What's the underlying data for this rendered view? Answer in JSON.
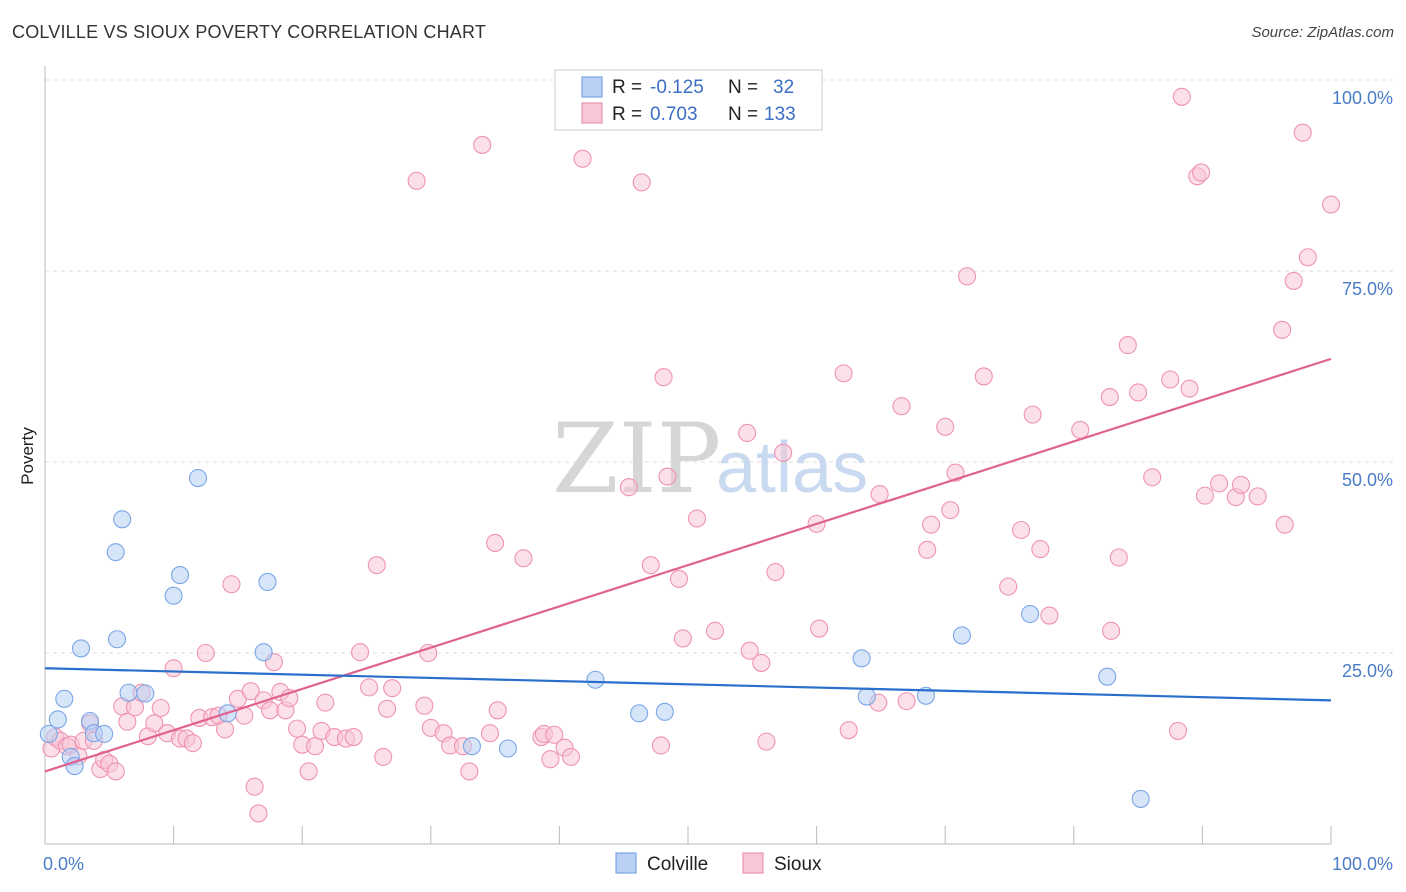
{
  "title": "COLVILLE VS SIOUX POVERTY CORRELATION CHART",
  "source": "Source: ZipAtlas.com",
  "watermark": {
    "part1": "ZIP",
    "part2": "atlas"
  },
  "colors": {
    "colville_fill": "#b7d0f4",
    "colville_stroke": "#7ba6e6",
    "colville_line": "#2a6fcc",
    "sioux_fill": "#f8c6d6",
    "sioux_stroke": "#ef93b3",
    "sioux_line": "#e0628f",
    "axis_label": "#4a7cc7",
    "grid": "#dddddd"
  },
  "legend": {
    "rows": [
      {
        "series": "colville",
        "r_label": "R =",
        "r_value": "-0.125",
        "n_label": "N =",
        "n_value": "32"
      },
      {
        "series": "sioux",
        "r_label": "R =",
        "r_value": "0.703",
        "n_label": "N =",
        "n_value": "133"
      }
    ]
  },
  "chart_data": {
    "type": "scatter",
    "title": "COLVILLE VS SIOUX POVERTY CORRELATION CHART",
    "xlabel": "",
    "ylabel": "Poverty",
    "xlim": [
      0,
      100
    ],
    "ylim": [
      0,
      100
    ],
    "x_tick_labels": [
      {
        "value": 0,
        "label": "0.0%"
      },
      {
        "value": 100,
        "label": "100.0%"
      }
    ],
    "y_tick_labels": [
      {
        "value": 25,
        "label": "25.0%"
      },
      {
        "value": 50,
        "label": "50.0%"
      },
      {
        "value": 75,
        "label": "75.0%"
      },
      {
        "value": 100,
        "label": "100.0%"
      }
    ],
    "grid": true,
    "legend_position": "top-center",
    "series": [
      {
        "name": "Colville",
        "r": -0.125,
        "n": 32,
        "trend": {
          "x": [
            0,
            100
          ],
          "y": [
            23.0,
            18.8
          ]
        },
        "points": [
          [
            1,
            16.3
          ],
          [
            1.5,
            19
          ],
          [
            2,
            11.4
          ],
          [
            2.3,
            10.2
          ],
          [
            2.8,
            25.6
          ],
          [
            3.5,
            16.1
          ],
          [
            3.8,
            14.5
          ],
          [
            4.6,
            14.4
          ],
          [
            5.5,
            38.2
          ],
          [
            5.6,
            26.8
          ],
          [
            6,
            42.5
          ],
          [
            6.5,
            19.8
          ],
          [
            7.8,
            19.7
          ],
          [
            10,
            32.5
          ],
          [
            10.5,
            35.2
          ],
          [
            11.9,
            47.9
          ],
          [
            14.2,
            17.1
          ],
          [
            17,
            25.1
          ],
          [
            17.3,
            34.3
          ],
          [
            33.2,
            12.8
          ],
          [
            36,
            12.5
          ],
          [
            42.8,
            21.5
          ],
          [
            46.2,
            17.1
          ],
          [
            48.2,
            17.3
          ],
          [
            63.5,
            24.3
          ],
          [
            63.9,
            19.3
          ],
          [
            68.5,
            19.4
          ],
          [
            71.3,
            27.3
          ],
          [
            76.6,
            30.1
          ],
          [
            82.6,
            21.9
          ],
          [
            85.2,
            5.9
          ],
          [
            0.3,
            14.4
          ]
        ]
      },
      {
        "name": "Sioux",
        "r": 0.703,
        "n": 133,
        "trend": {
          "x": [
            0,
            100
          ],
          "y": [
            9.5,
            63.5
          ]
        },
        "points": [
          [
            0.5,
            12.5
          ],
          [
            0.8,
            14
          ],
          [
            1.2,
            13.5
          ],
          [
            1.7,
            12.8
          ],
          [
            2,
            13
          ],
          [
            2.6,
            11.5
          ],
          [
            3,
            13.5
          ],
          [
            3.5,
            15.8
          ],
          [
            3.8,
            13.5
          ],
          [
            4.3,
            9.8
          ],
          [
            4.6,
            11
          ],
          [
            5,
            10.5
          ],
          [
            5.5,
            9.5
          ],
          [
            6,
            18
          ],
          [
            6.4,
            16
          ],
          [
            7,
            17.9
          ],
          [
            7.5,
            19.8
          ],
          [
            8,
            14.1
          ],
          [
            8.5,
            15.8
          ],
          [
            9,
            17.8
          ],
          [
            9.5,
            14.5
          ],
          [
            10,
            23
          ],
          [
            10.5,
            13.8
          ],
          [
            11,
            13.8
          ],
          [
            11.5,
            13.2
          ],
          [
            12,
            16.5
          ],
          [
            12.5,
            25
          ],
          [
            13,
            16.6
          ],
          [
            13.5,
            16.8
          ],
          [
            14,
            15
          ],
          [
            14.5,
            34
          ],
          [
            15,
            19
          ],
          [
            15.5,
            16.8
          ],
          [
            16,
            20
          ],
          [
            16.3,
            7.5
          ],
          [
            16.6,
            4
          ],
          [
            17,
            18.8
          ],
          [
            17.5,
            17.5
          ],
          [
            17.8,
            23.8
          ],
          [
            18.3,
            19.9
          ],
          [
            18.7,
            17.5
          ],
          [
            19,
            19.1
          ],
          [
            19.6,
            15.1
          ],
          [
            20,
            13
          ],
          [
            20.5,
            9.5
          ],
          [
            21,
            12.8
          ],
          [
            21.5,
            14.8
          ],
          [
            21.8,
            18.5
          ],
          [
            22.5,
            14
          ],
          [
            23.4,
            13.8
          ],
          [
            24,
            14
          ],
          [
            24.5,
            25.1
          ],
          [
            25.2,
            20.5
          ],
          [
            25.8,
            36.5
          ],
          [
            26.3,
            11.4
          ],
          [
            26.6,
            17.7
          ],
          [
            27,
            20.4
          ],
          [
            28.9,
            86.8
          ],
          [
            29.5,
            18.1
          ],
          [
            29.8,
            25
          ],
          [
            30,
            15.2
          ],
          [
            31,
            14.5
          ],
          [
            31.5,
            12.9
          ],
          [
            32.5,
            12.8
          ],
          [
            33,
            9.5
          ],
          [
            34,
            91.5
          ],
          [
            34.6,
            14.5
          ],
          [
            35,
            39.4
          ],
          [
            35.2,
            17.5
          ],
          [
            37.2,
            37.4
          ],
          [
            38.6,
            14
          ],
          [
            38.8,
            14.4
          ],
          [
            39.3,
            11.1
          ],
          [
            39.6,
            14.3
          ],
          [
            40.4,
            12.6
          ],
          [
            40.9,
            11.4
          ],
          [
            41.8,
            89.7
          ],
          [
            45.4,
            46.7
          ],
          [
            46.4,
            86.6
          ],
          [
            47.1,
            36.5
          ],
          [
            47.9,
            12.9
          ],
          [
            48.1,
            61.1
          ],
          [
            48.4,
            48.1
          ],
          [
            49.3,
            34.7
          ],
          [
            49.6,
            26.9
          ],
          [
            50.7,
            42.6
          ],
          [
            52.1,
            27.9
          ],
          [
            54.6,
            53.8
          ],
          [
            54.8,
            25.3
          ],
          [
            55.7,
            23.7
          ],
          [
            56.1,
            13.4
          ],
          [
            56.8,
            35.6
          ],
          [
            57.4,
            51.2
          ],
          [
            60,
            41.9
          ],
          [
            60.2,
            28.2
          ],
          [
            62.1,
            61.6
          ],
          [
            62.5,
            14.9
          ],
          [
            64.9,
            45.8
          ],
          [
            64.8,
            18.5
          ],
          [
            66.6,
            57.3
          ],
          [
            67,
            18.7
          ],
          [
            68.6,
            38.5
          ],
          [
            68.9,
            41.8
          ],
          [
            70,
            54.6
          ],
          [
            70.4,
            43.7
          ],
          [
            70.8,
            48.6
          ],
          [
            71.7,
            74.3
          ],
          [
            73,
            61.2
          ],
          [
            74.9,
            33.7
          ],
          [
            75.9,
            41.1
          ],
          [
            76.8,
            56.2
          ],
          [
            77.4,
            38.6
          ],
          [
            78.1,
            29.9
          ],
          [
            80.5,
            54.2
          ],
          [
            82.8,
            58.5
          ],
          [
            82.9,
            27.9
          ],
          [
            83.5,
            37.5
          ],
          [
            84.2,
            65.3
          ],
          [
            85,
            59.1
          ],
          [
            86.1,
            48
          ],
          [
            87.5,
            60.8
          ],
          [
            88.1,
            14.8
          ],
          [
            88.4,
            97.8
          ],
          [
            89,
            59.6
          ],
          [
            89.6,
            87.4
          ],
          [
            89.9,
            87.9
          ],
          [
            90.2,
            45.6
          ],
          [
            91.3,
            47.2
          ],
          [
            92.6,
            45.4
          ],
          [
            93,
            47
          ],
          [
            94.3,
            45.5
          ],
          [
            96.2,
            67.3
          ],
          [
            96.4,
            41.8
          ],
          [
            97.1,
            73.7
          ],
          [
            97.8,
            93.1
          ],
          [
            98.2,
            76.8
          ],
          [
            100,
            83.7
          ]
        ]
      }
    ]
  },
  "bottom_legend": {
    "items": [
      {
        "series": "colville",
        "label": "Colville"
      },
      {
        "series": "sioux",
        "label": "Sioux"
      }
    ]
  }
}
